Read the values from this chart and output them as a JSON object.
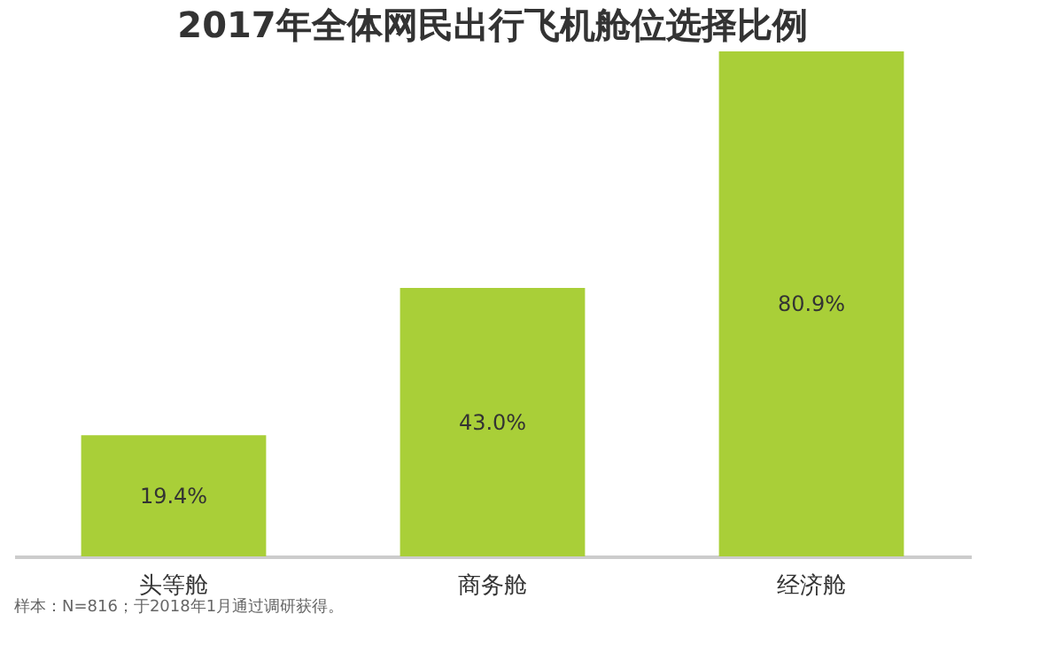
{
  "chart_data": {
    "type": "bar",
    "title": "2017年全体网民出行飞机舱位选择比例",
    "categories": [
      "头等舱",
      "商务舱",
      "经济舱"
    ],
    "values": [
      19.4,
      43.0,
      80.9
    ],
    "value_labels": [
      "19.4%",
      "43.0%",
      "80.9%"
    ],
    "color": "#a9cf38",
    "annotations": [
      "样本：N=816；于2018年1月通过调研获得。"
    ]
  }
}
